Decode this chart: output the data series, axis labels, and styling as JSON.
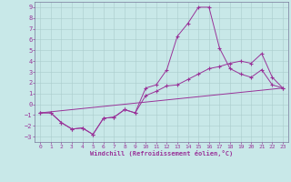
{
  "xlabel": "Windchill (Refroidissement éolien,°C)",
  "xlim": [
    -0.5,
    23.5
  ],
  "ylim": [
    -3.5,
    9.5
  ],
  "xticks": [
    0,
    1,
    2,
    3,
    4,
    5,
    6,
    7,
    8,
    9,
    10,
    11,
    12,
    13,
    14,
    15,
    16,
    17,
    18,
    19,
    20,
    21,
    22,
    23
  ],
  "yticks": [
    -3,
    -2,
    -1,
    0,
    1,
    2,
    3,
    4,
    5,
    6,
    7,
    8,
    9
  ],
  "bg_color": "#c8e8e8",
  "line_color": "#993399",
  "grid_color": "#aacccc",
  "line1_x": [
    0,
    1,
    2,
    3,
    4,
    5,
    6,
    7,
    8,
    9,
    10,
    11,
    12,
    13,
    14,
    15,
    16,
    17,
    18,
    19,
    20,
    21,
    22,
    23
  ],
  "line1_y": [
    -0.8,
    -0.8,
    -1.7,
    -2.3,
    -2.2,
    -2.8,
    -1.3,
    -1.2,
    -0.5,
    -0.8,
    1.5,
    1.8,
    3.2,
    6.3,
    7.5,
    9.0,
    9.0,
    5.2,
    3.3,
    2.8,
    2.5,
    3.2,
    1.8,
    1.5
  ],
  "line2_x": [
    0,
    1,
    2,
    3,
    4,
    5,
    6,
    7,
    8,
    9,
    10,
    11,
    12,
    13,
    14,
    15,
    16,
    17,
    18,
    19,
    20,
    21,
    22,
    23
  ],
  "line2_y": [
    -0.8,
    -0.8,
    -1.7,
    -2.3,
    -2.2,
    -2.8,
    -1.3,
    -1.2,
    -0.5,
    -0.8,
    0.8,
    1.2,
    1.7,
    1.8,
    2.3,
    2.8,
    3.3,
    3.5,
    3.8,
    4.0,
    3.8,
    4.7,
    2.5,
    1.5
  ],
  "line3_x": [
    0,
    23
  ],
  "line3_y": [
    -0.8,
    1.5
  ]
}
